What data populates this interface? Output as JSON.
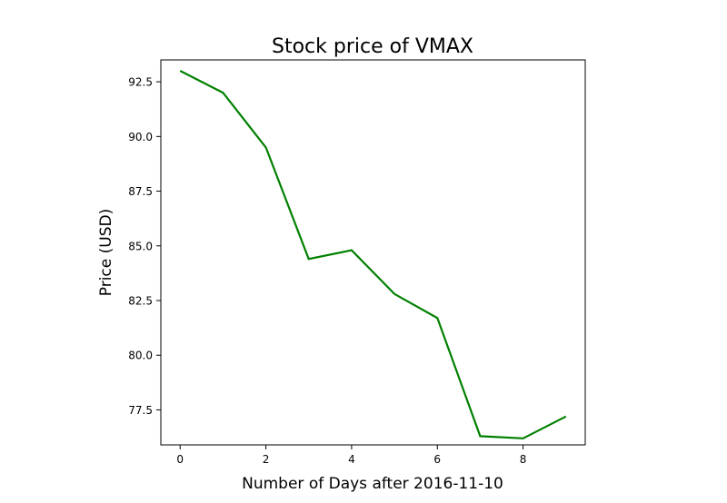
{
  "chart_data": {
    "type": "line",
    "title": "Stock price of VMAX",
    "xlabel": "Number of Days after 2016-11-10",
    "ylabel": "Price (USD)",
    "x": [
      0,
      1,
      2,
      3,
      4,
      5,
      6,
      7,
      8,
      9
    ],
    "series": [
      {
        "values": [
          93.0,
          92.0,
          89.5,
          84.4,
          84.8,
          82.8,
          81.7,
          76.3,
          76.2,
          77.2
        ],
        "color": "#008000"
      }
    ],
    "xlim": [
      -0.45,
      9.45
    ],
    "ylim": [
      75.9,
      93.5
    ],
    "xticks": [
      0,
      2,
      4,
      6,
      8
    ],
    "xtick_labels": [
      "0",
      "2",
      "4",
      "6",
      "8"
    ],
    "yticks": [
      77.5,
      80.0,
      82.5,
      85.0,
      87.5,
      90.0,
      92.5
    ],
    "ytick_labels": [
      "77.5",
      "80.0",
      "82.5",
      "85.0",
      "87.5",
      "90.0",
      "92.5"
    ],
    "grid": false,
    "legend": "none"
  }
}
